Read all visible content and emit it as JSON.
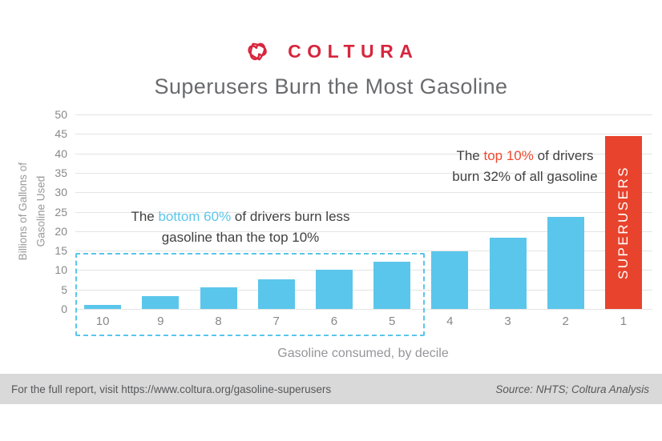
{
  "brand": {
    "name": "COLTURA",
    "logo_icon": "coltura-hearts-icon",
    "brand_color": "#d7263d"
  },
  "title": "Superusers Burn the Most Gasoline",
  "chart_data": {
    "type": "bar",
    "title": "Superusers Burn the Most Gasoline",
    "categories": [
      "10",
      "9",
      "8",
      "7",
      "6",
      "5",
      "4",
      "3",
      "2",
      "1"
    ],
    "values": [
      1.0,
      3.3,
      5.5,
      7.6,
      10.0,
      12.1,
      14.8,
      18.3,
      23.6,
      44.5
    ],
    "xlabel": "Gasoline consumed, by decile",
    "ylabel_line1": "Billions of Gallons of",
    "ylabel_line2": "Gasoline Used",
    "ylim": [
      0,
      50
    ],
    "yticks": [
      0,
      5,
      10,
      15,
      20,
      25,
      30,
      35,
      40,
      45,
      50
    ],
    "grid": true,
    "legend": "none",
    "bar_color": "#5bc6eb",
    "highlight": {
      "category": "1",
      "index": 9,
      "label": "SUPERUSERS",
      "color": "#e8432c"
    },
    "group_box": {
      "covers_categories": [
        "10",
        "9",
        "8",
        "7",
        "6",
        "5"
      ],
      "style": "dashed",
      "color": "#5bc6eb"
    },
    "annotations": [
      {
        "id": "bottom60",
        "segments": [
          {
            "text": "The ",
            "color": "#414042"
          },
          {
            "text": "bottom 60%",
            "color": "#5bc6eb"
          },
          {
            "text": " of drivers burn less gasoline than the top 10%",
            "color": "#414042"
          }
        ]
      },
      {
        "id": "top10",
        "segments": [
          {
            "text": "The ",
            "color": "#414042"
          },
          {
            "text": "top 10%",
            "color": "#ef4a2f"
          },
          {
            "text": " of drivers burn 32% of all gasoline",
            "color": "#414042"
          }
        ]
      }
    ]
  },
  "footer": {
    "left": "For the full report, visit https://www.coltura.org/gasoline-superusers",
    "right": "Source: NHTS; Coltura Analysis"
  },
  "colors": {
    "brand_red": "#d7263d",
    "bar_blue": "#5bc6eb",
    "bar_red": "#e8432c",
    "title_gray": "#6a6b6e",
    "axis_gray": "#97989a",
    "tick_gray": "#87888a",
    "annotation_dark": "#414042",
    "gridline": "#e4e4e4",
    "footer_bg": "#d9d9d9",
    "footer_text": "#57585a"
  }
}
